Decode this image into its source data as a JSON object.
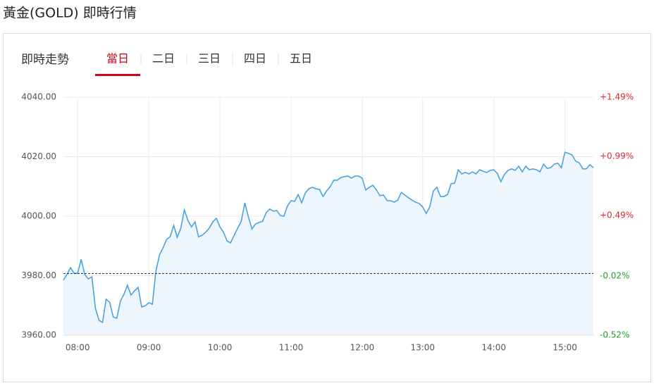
{
  "header": {
    "title": "黃金(GOLD) 即時行情"
  },
  "panel": {
    "label": "即時走勢",
    "tabs": [
      "當日",
      "二日",
      "三日",
      "四日",
      "五日"
    ],
    "active_tab": 0
  },
  "chart_data": {
    "type": "area",
    "series": [
      {
        "name": "GOLD",
        "color": "#4aa3e0",
        "fill": "#eef6fd",
        "values": [
          3978.5,
          3980.4,
          3982.7,
          3980.8,
          3980.8,
          3985.5,
          3980.4,
          3978.9,
          3979.6,
          3969.0,
          3965.0,
          3964.3,
          3972.1,
          3971.1,
          3966.1,
          3965.7,
          3971.4,
          3973.7,
          3976.8,
          3973.5,
          3974.9,
          3976.1,
          3969.5,
          3969.9,
          3970.9,
          3970.4,
          3981.5,
          3987.0,
          3989.3,
          3992.2,
          3993.1,
          3996.9,
          3992.9,
          3996.0,
          4002.1,
          3998.6,
          3996.4,
          3998.1,
          3993.1,
          3993.6,
          3994.6,
          3996.0,
          3998.1,
          3999.3,
          3996.4,
          3994.6,
          3991.7,
          3991.0,
          3993.6,
          3996.0,
          3998.3,
          4004.5,
          3999.8,
          3995.7,
          3997.4,
          3997.9,
          3998.3,
          4001.2,
          4002.4,
          4001.7,
          4001.9,
          4000.2,
          4000.0,
          4003.5,
          4005.2,
          4005.0,
          4007.3,
          4004.5,
          4007.8,
          4009.2,
          4009.7,
          4009.2,
          4009.0,
          4006.6,
          4008.5,
          4009.9,
          4012.1,
          4012.1,
          4013.0,
          4013.3,
          4013.5,
          4012.8,
          4013.5,
          4013.5,
          4012.8,
          4008.8,
          4009.7,
          4010.4,
          4008.8,
          4006.9,
          4007.1,
          4005.2,
          4005.2,
          4004.7,
          4005.4,
          4008.0,
          4007.1,
          4006.2,
          4005.4,
          4004.7,
          4004.3,
          4003.1,
          4000.9,
          4003.1,
          4008.5,
          4009.7,
          4006.6,
          4006.6,
          4007.3,
          4010.9,
          4011.1,
          4015.6,
          4014.2,
          4014.7,
          4014.2,
          4014.9,
          4014.2,
          4015.6,
          4015.1,
          4014.7,
          4015.4,
          4015.6,
          4014.4,
          4011.6,
          4014.0,
          4015.4,
          4015.9,
          4015.4,
          4016.8,
          4014.9,
          4016.8,
          4015.6,
          4015.9,
          4015.6,
          4014.9,
          4017.5,
          4016.1,
          4016.3,
          4017.5,
          4017.8,
          4016.3,
          4021.5,
          4021.1,
          4020.6,
          4018.5,
          4018.0,
          4015.9,
          4015.9,
          4017.3,
          4016.3
        ]
      }
    ],
    "reference_line": 3980.7,
    "xlim": [
      0,
      149
    ],
    "xticks": [
      {
        "value": 4,
        "label": "08:00"
      },
      {
        "value": 24,
        "label": "09:00"
      },
      {
        "value": 44,
        "label": "10:00"
      },
      {
        "value": 64,
        "label": "11:00"
      },
      {
        "value": 84,
        "label": "12:00"
      },
      {
        "value": 101,
        "label": "13:00"
      },
      {
        "value": 121,
        "label": "14:00"
      },
      {
        "value": 141,
        "label": "15:00"
      }
    ],
    "ylim": [
      3960,
      4040
    ],
    "yticks": [
      {
        "value": 4040,
        "label": "4040.00"
      },
      {
        "value": 4020,
        "label": "4020.00"
      },
      {
        "value": 4000,
        "label": "4000.00"
      },
      {
        "value": 3980,
        "label": "3980.00"
      },
      {
        "value": 3960,
        "label": "3960.00"
      }
    ],
    "y2lim": [
      -0.52,
      1.49
    ],
    "y2ticks": [
      {
        "value": 1.49,
        "label": "+1.49%"
      },
      {
        "value": 0.99,
        "label": "+0.99%"
      },
      {
        "value": 0.49,
        "label": "+0.49%"
      },
      {
        "value": -0.02,
        "label": "-0.02%"
      },
      {
        "value": -0.52,
        "label": "-0.52%"
      }
    ],
    "up_color": "#e0262d",
    "down_color": "#1f9e2a",
    "grid": true
  }
}
